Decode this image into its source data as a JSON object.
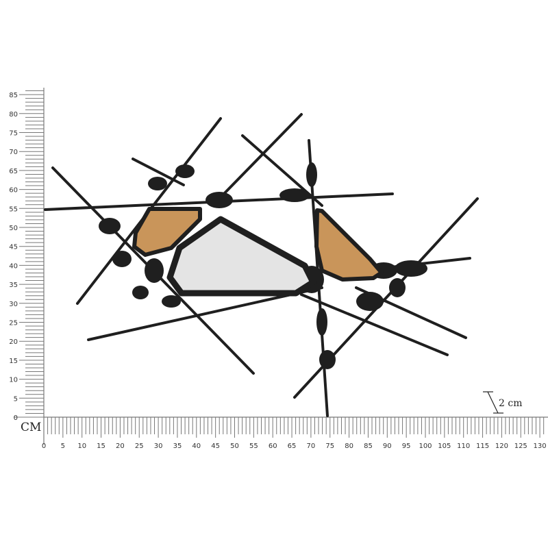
{
  "unit_label": "CM",
  "x_ruler": {
    "labels": [
      "0",
      "5",
      "10",
      "15",
      "20",
      "25",
      "30",
      "35",
      "40",
      "45",
      "50",
      "55",
      "60",
      "65",
      "70",
      "75",
      "80",
      "85",
      "90",
      "95",
      "100",
      "105",
      "110",
      "115",
      "120",
      "125",
      "130"
    ],
    "max_cm": 131
  },
  "y_ruler": {
    "labels": [
      "0",
      "5",
      "10",
      "15",
      "20",
      "25",
      "30",
      "35",
      "40",
      "45",
      "50",
      "55",
      "60",
      "65",
      "70",
      "75",
      "80",
      "85"
    ],
    "max_cm": 86
  },
  "depth_annotation": "2 cm",
  "colors": {
    "metal": "#1f1f1f",
    "wood": "#c9955a",
    "mirror": "#e4e4e4",
    "ruler": "#888888"
  }
}
